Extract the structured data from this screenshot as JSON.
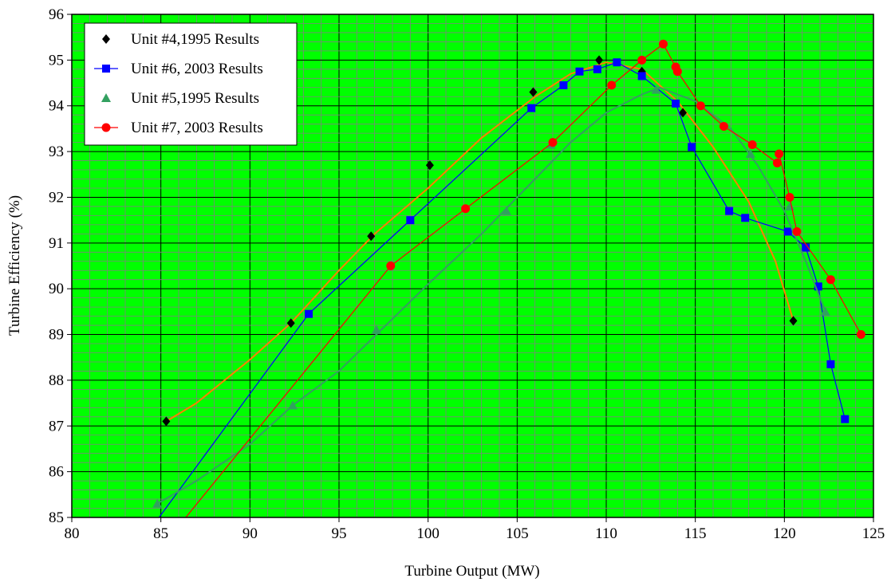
{
  "chart_data": {
    "type": "scatter",
    "xlabel": "Turbine Output (MW)",
    "ylabel": "Turbine Efficiency (%)",
    "xlim": [
      80,
      125
    ],
    "ylim": [
      85,
      96
    ],
    "x_ticks": [
      "80",
      "85",
      "90",
      "95",
      "100",
      "105",
      "110",
      "115",
      "120",
      "125"
    ],
    "y_ticks": [
      "85",
      "86",
      "87",
      "88",
      "89",
      "90",
      "91",
      "92",
      "93",
      "94",
      "95",
      "96"
    ],
    "minor_grid": {
      "x_step": 1,
      "y_step": 0.2
    },
    "grid": true,
    "legend_position": "top-left",
    "series": [
      {
        "name": "Unit #4,1995 Results",
        "marker": "diamond",
        "color": "#000000",
        "points": [
          [
            85.3,
            87.1
          ],
          [
            92.3,
            89.25
          ],
          [
            96.8,
            91.15
          ],
          [
            100.1,
            92.7
          ],
          [
            105.9,
            94.3
          ],
          [
            109.6,
            95.0
          ],
          [
            112.0,
            94.75
          ],
          [
            114.3,
            93.85
          ],
          [
            120.5,
            89.3
          ]
        ],
        "fit": {
          "color": "#ff8000",
          "points": [
            [
              85.3,
              87.1
            ],
            [
              87,
              87.5
            ],
            [
              90,
              88.45
            ],
            [
              92.3,
              89.25
            ],
            [
              95,
              90.4
            ],
            [
              97,
              91.2
            ],
            [
              100,
              92.2
            ],
            [
              103,
              93.3
            ],
            [
              106,
              94.2
            ],
            [
              108,
              94.7
            ],
            [
              110,
              94.95
            ],
            [
              112,
              94.8
            ],
            [
              114,
              94.1
            ],
            [
              116,
              93.1
            ],
            [
              118,
              91.9
            ],
            [
              119.5,
              90.6
            ],
            [
              120.5,
              89.3
            ]
          ]
        }
      },
      {
        "name": "Unit #6, 2003 Results",
        "marker": "square",
        "color": "#0000ff",
        "points": [
          [
            93.3,
            89.45
          ],
          [
            99.0,
            91.5
          ],
          [
            105.8,
            93.95
          ],
          [
            107.6,
            94.45
          ],
          [
            108.5,
            94.75
          ],
          [
            109.5,
            94.8
          ],
          [
            110.6,
            94.95
          ],
          [
            112.0,
            94.65
          ],
          [
            113.9,
            94.05
          ],
          [
            114.8,
            93.1
          ],
          [
            116.9,
            91.7
          ],
          [
            117.8,
            91.55
          ],
          [
            120.2,
            91.25
          ],
          [
            121.2,
            90.9
          ],
          [
            121.9,
            90.05
          ],
          [
            122.6,
            88.35
          ],
          [
            123.4,
            87.15
          ]
        ],
        "connect": true,
        "line_start": [
          84.9,
          85.0
        ]
      },
      {
        "name": "Unit #5,1995 Results",
        "marker": "triangle",
        "color": "#33a060",
        "points": [
          [
            84.8,
            85.3
          ],
          [
            92.4,
            87.45
          ],
          [
            97.1,
            89.1
          ],
          [
            104.4,
            91.7
          ],
          [
            106.9,
            93.15
          ],
          [
            112.8,
            94.35
          ],
          [
            118.1,
            92.95
          ],
          [
            120.3,
            91.8
          ],
          [
            122.3,
            89.5
          ]
        ],
        "fit": {
          "color": "#33a060",
          "points": [
            [
              84.8,
              85.3
            ],
            [
              87,
              85.8
            ],
            [
              90,
              86.6
            ],
            [
              92.4,
              87.45
            ],
            [
              95,
              88.2
            ],
            [
              97.1,
              89.0
            ],
            [
              100,
              90.1
            ],
            [
              103,
              91.2
            ],
            [
              106,
              92.4
            ],
            [
              108,
              93.2
            ],
            [
              110,
              93.85
            ],
            [
              112,
              94.25
            ],
            [
              113,
              94.4
            ],
            [
              115,
              94.1
            ],
            [
              117,
              93.5
            ],
            [
              118.5,
              92.7
            ],
            [
              120,
              91.7
            ],
            [
              121.2,
              90.6
            ],
            [
              122.3,
              89.5
            ]
          ]
        }
      },
      {
        "name": "Unit #7, 2003 Results",
        "marker": "circle",
        "color": "#ff0000",
        "points": [
          [
            97.9,
            90.5
          ],
          [
            102.1,
            91.75
          ],
          [
            107.0,
            93.2
          ],
          [
            110.3,
            94.45
          ],
          [
            112.0,
            95.0
          ],
          [
            113.2,
            95.35
          ],
          [
            113.9,
            94.85
          ],
          [
            114.0,
            94.75
          ],
          [
            115.3,
            94.0
          ],
          [
            116.6,
            93.55
          ],
          [
            118.2,
            93.15
          ],
          [
            119.6,
            92.75
          ],
          [
            119.7,
            92.95
          ],
          [
            120.3,
            92.0
          ],
          [
            120.7,
            91.25
          ],
          [
            122.6,
            90.2
          ],
          [
            124.3,
            89.0
          ]
        ],
        "connect": true,
        "line_start": [
          86.4,
          85.0
        ]
      }
    ]
  }
}
